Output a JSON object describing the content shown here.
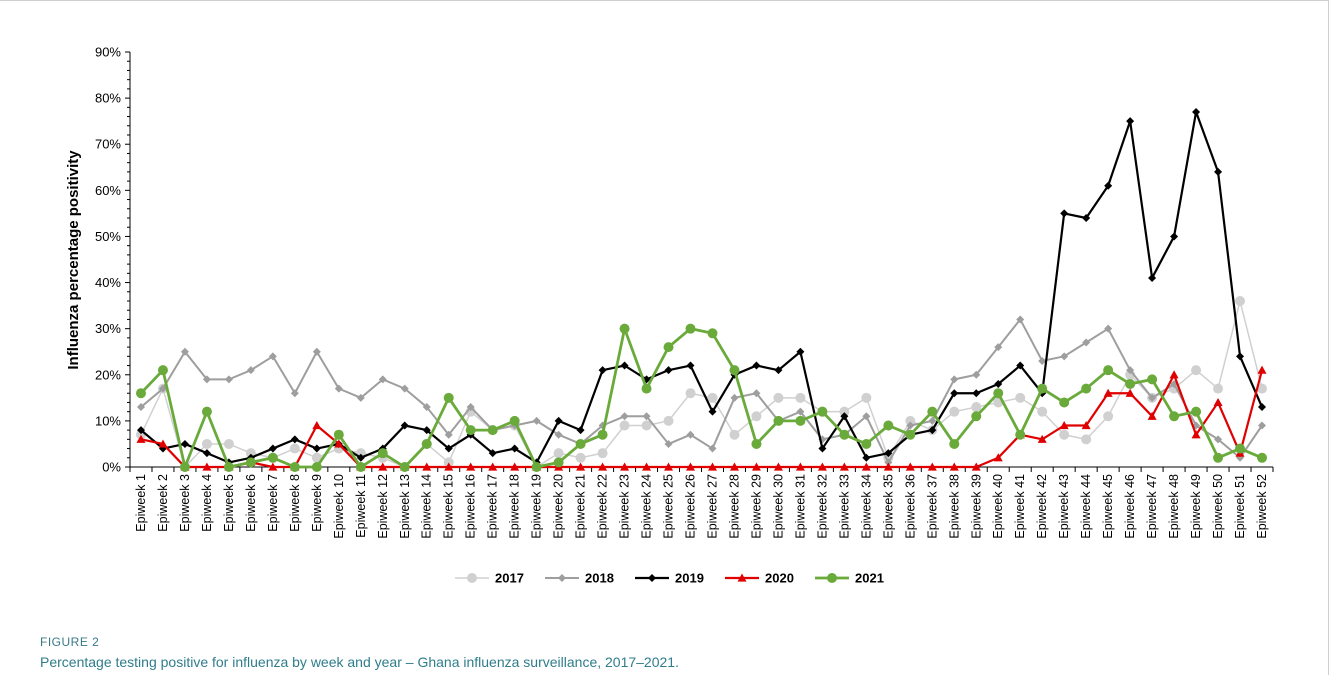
{
  "figure": {
    "label": "FIGURE 2",
    "caption": "Percentage testing positive for influenza by week and year – Ghana influenza surveillance, 2017–2021."
  },
  "chart_data": {
    "type": "line",
    "ylabel": "Influenza percentage positivity",
    "xlabel": "",
    "ylim": [
      0,
      90
    ],
    "yticks": [
      "0%",
      "10%",
      "20%",
      "30%",
      "40%",
      "50%",
      "60%",
      "70%",
      "80%",
      "90%"
    ],
    "grid": false,
    "legend_position": "bottom",
    "categories": [
      "Epiweek 1",
      "Epiweek 2",
      "Epiweek 3",
      "Epiweek 4",
      "Epiweek 5",
      "Epiweek 6",
      "Epiweek 7",
      "Epiweek 8",
      "Epiweek 9",
      "Epiweek 10",
      "Epiweek 11",
      "Epiweek 12",
      "Epiweek 13",
      "Epiweek 14",
      "Epiweek 15",
      "Epiweek 16",
      "Epiweek 17",
      "Epiweek 18",
      "Epiweek 19",
      "Epiweek 20",
      "Epiweek 21",
      "Epiweek 22",
      "Epiweek 23",
      "Epiweek 24",
      "Epiweek 25",
      "Epiweek 26",
      "Epiweek 27",
      "Epiweek 28",
      "Epiweek 29",
      "Epiweek 30",
      "Epiweek 31",
      "Epiweek 32",
      "Epiweek 33",
      "Epiweek 34",
      "Epiweek 35",
      "Epiweek 36",
      "Epiweek 37",
      "Epiweek 38",
      "Epiweek 39",
      "Epiweek 40",
      "Epiweek 41",
      "Epiweek 42",
      "Epiweek 43",
      "Epiweek 44",
      "Epiweek 45",
      "Epiweek 46",
      "Epiweek 47",
      "Epiweek 48",
      "Epiweek 49",
      "Epiweek 50",
      "Epiweek 51",
      "Epiweek 52"
    ],
    "series": [
      {
        "name": "2017",
        "color": "#d0d0d0",
        "marker": "circle",
        "values": [
          7,
          17,
          0,
          5,
          5,
          3,
          2,
          4,
          2,
          4,
          3,
          2,
          0,
          5,
          1,
          12,
          8,
          9,
          0,
          3,
          2,
          3,
          9,
          9,
          10,
          16,
          15,
          7,
          11,
          15,
          15,
          12,
          12,
          15,
          2,
          10,
          8,
          12,
          13,
          14,
          15,
          12,
          7,
          6,
          11,
          20,
          15,
          17,
          21,
          17,
          36,
          17
        ]
      },
      {
        "name": "2018",
        "color": "#9e9e9e",
        "marker": "diamond",
        "values": [
          13,
          17,
          25,
          19,
          19,
          21,
          24,
          16,
          25,
          17,
          15,
          19,
          17,
          13,
          7,
          13,
          8,
          9,
          10,
          7,
          5,
          9,
          11,
          11,
          5,
          7,
          4,
          15,
          16,
          10,
          12,
          6,
          7,
          11,
          1,
          9,
          10,
          19,
          20,
          26,
          32,
          23,
          24,
          27,
          30,
          21,
          15,
          18,
          9,
          6,
          2,
          9
        ]
      },
      {
        "name": "2019",
        "color": "#000000",
        "marker": "diamond",
        "values": [
          8,
          4,
          5,
          3,
          1,
          2,
          4,
          6,
          4,
          5,
          2,
          4,
          9,
          8,
          4,
          7,
          3,
          4,
          1,
          10,
          8,
          21,
          22,
          19,
          21,
          22,
          12,
          20,
          22,
          21,
          25,
          4,
          11,
          2,
          3,
          7,
          8,
          16,
          16,
          18,
          22,
          16,
          55,
          54,
          61,
          75,
          41,
          50,
          77,
          64,
          24,
          13
        ]
      },
      {
        "name": "2020",
        "color": "#e00000",
        "marker": "triangle",
        "values": [
          6,
          5,
          0,
          0,
          0,
          1,
          0,
          0,
          9,
          5,
          0,
          0,
          0,
          0,
          0,
          0,
          0,
          0,
          0,
          0,
          0,
          0,
          0,
          0,
          0,
          0,
          0,
          0,
          0,
          0,
          0,
          0,
          0,
          0,
          0,
          0,
          0,
          0,
          0,
          2,
          7,
          6,
          9,
          9,
          16,
          16,
          11,
          20,
          7,
          14,
          3,
          21
        ]
      },
      {
        "name": "2021",
        "color": "#6aaa3b",
        "marker": "circle",
        "values": [
          16,
          21,
          0,
          12,
          0,
          1,
          2,
          0,
          0,
          7,
          0,
          3,
          0,
          5,
          15,
          8,
          8,
          10,
          0,
          1,
          5,
          7,
          30,
          17,
          26,
          30,
          29,
          21,
          5,
          10,
          10,
          12,
          7,
          5,
          9,
          7,
          12,
          5,
          11,
          16,
          7,
          17,
          14,
          17,
          21,
          18,
          19,
          11,
          12,
          2,
          4,
          2
        ]
      }
    ]
  }
}
